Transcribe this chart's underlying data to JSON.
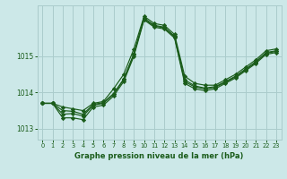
{
  "title": "Graphe pression niveau de la mer (hPa)",
  "background_color": "#cce8e8",
  "grid_color": "#aacccc",
  "line_color": "#1a5c1a",
  "ylim": [
    1012.7,
    1016.4
  ],
  "xlim": [
    -0.5,
    23.5
  ],
  "yticks": [
    1013,
    1014,
    1015
  ],
  "xticks": [
    0,
    1,
    2,
    3,
    4,
    5,
    6,
    7,
    8,
    9,
    10,
    11,
    12,
    13,
    14,
    15,
    16,
    17,
    18,
    19,
    20,
    21,
    22,
    23
  ],
  "series": [
    [
      1013.7,
      1013.7,
      1013.6,
      1013.55,
      1013.5,
      1013.7,
      1013.75,
      1014.1,
      1014.5,
      1015.2,
      1016.1,
      1015.9,
      1015.85,
      1015.6,
      1014.45,
      1014.25,
      1014.2,
      1014.2,
      1014.35,
      1014.5,
      1014.7,
      1014.9,
      1015.15,
      1015.2
    ],
    [
      1013.7,
      1013.7,
      1013.3,
      1013.3,
      1013.25,
      1013.6,
      1013.65,
      1013.9,
      1014.3,
      1015.0,
      1016.0,
      1015.8,
      1015.75,
      1015.5,
      1014.25,
      1014.1,
      1014.05,
      1014.1,
      1014.25,
      1014.4,
      1014.6,
      1014.8,
      1015.05,
      1015.1
    ],
    [
      1013.7,
      1013.7,
      1013.4,
      1013.42,
      1013.35,
      1013.65,
      1013.7,
      1013.95,
      1014.35,
      1015.05,
      1016.03,
      1015.83,
      1015.78,
      1015.53,
      1014.3,
      1014.15,
      1014.1,
      1014.14,
      1014.28,
      1014.43,
      1014.63,
      1014.83,
      1015.08,
      1015.13
    ],
    [
      1013.7,
      1013.7,
      1013.5,
      1013.48,
      1013.4,
      1013.67,
      1013.72,
      1013.97,
      1014.37,
      1015.07,
      1016.05,
      1015.85,
      1015.8,
      1015.55,
      1014.35,
      1014.18,
      1014.12,
      1014.16,
      1014.3,
      1014.45,
      1014.65,
      1014.85,
      1015.1,
      1015.15
    ]
  ]
}
